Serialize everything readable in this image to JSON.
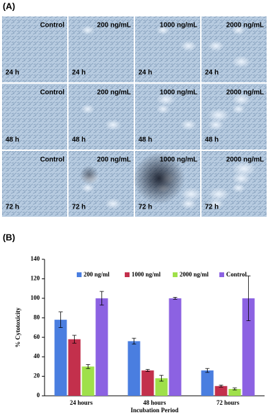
{
  "panel_a": {
    "label": "(A)",
    "columns": [
      "Control",
      "200 ng/mL",
      "1000 ng/mL",
      "2000 ng/mL"
    ],
    "rows": [
      "24 h",
      "48 h",
      "72 h"
    ]
  },
  "panel_b": {
    "label": "(B)"
  },
  "chart_data": {
    "type": "bar",
    "ylabel": "% Cytotoxicity",
    "xlabel": "Incubation Period",
    "categories": [
      "24 hours",
      "48 hours",
      "72 hours"
    ],
    "series": [
      {
        "name": "200 ng/ml",
        "color": "#4a7ee0",
        "values": [
          78,
          56,
          26
        ],
        "errors": [
          8,
          3,
          2
        ]
      },
      {
        "name": "1000 ng/ml",
        "color": "#c3304c",
        "values": [
          58,
          26,
          10
        ],
        "errors": [
          4,
          1,
          1
        ]
      },
      {
        "name": "2000 ng/ml",
        "color": "#9fe04a",
        "values": [
          30,
          18,
          7
        ],
        "errors": [
          2,
          3,
          1
        ]
      },
      {
        "name": "Control",
        "color": "#8c62e2",
        "values": [
          100,
          100,
          100
        ],
        "errors": [
          7,
          1,
          23
        ]
      }
    ],
    "ylim": [
      0,
      140
    ],
    "yticks": [
      0,
      20,
      40,
      60,
      80,
      100,
      120,
      140
    ],
    "legend": "top"
  }
}
